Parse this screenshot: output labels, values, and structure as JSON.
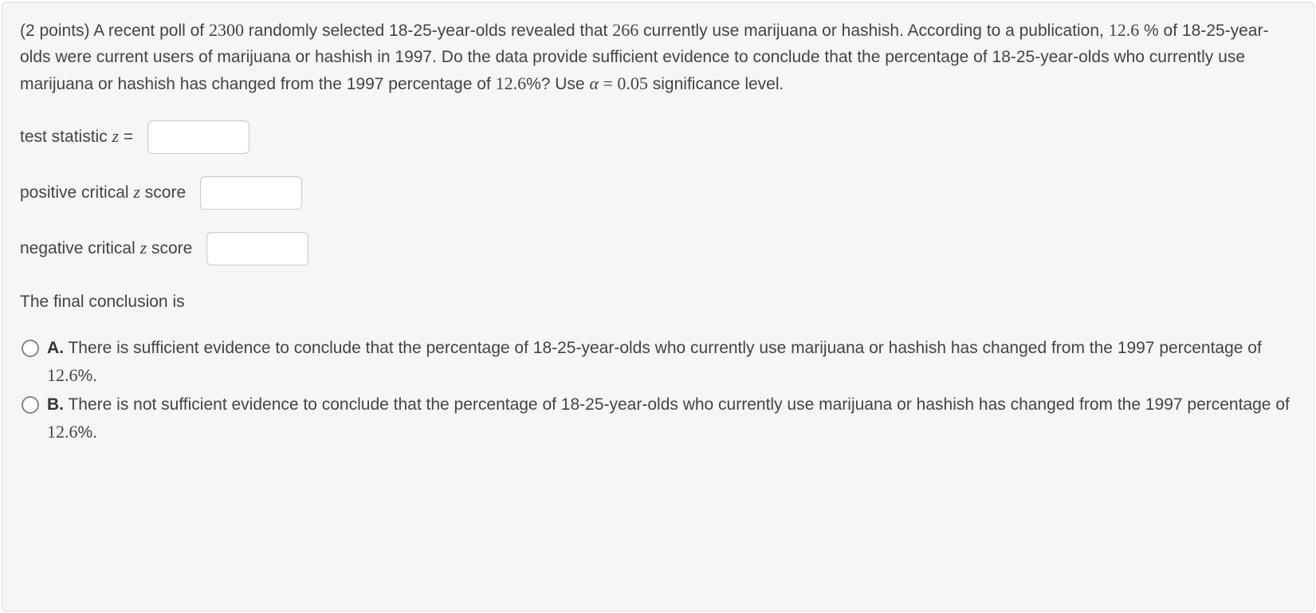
{
  "panel": {
    "background_color": "#f6f6f6",
    "border_color": "#dddddd",
    "text_color": "#444444"
  },
  "question": {
    "points_prefix": "(2 points) A recent poll of ",
    "n_sample": "2300",
    "seg1": " randomly selected 18-25-year-olds revealed that ",
    "n_users": "266",
    "seg2": " currently use marijuana or hashish. According to a publication, ",
    "pct_1997": "12.6",
    "seg3": " % of 18-25-year-olds were current users of marijuana or hashish in 1997. Do the data provide sufficient evidence to conclude that the percentage of 18-25-year-olds who currently use marijuana or hashish has changed from the 1997 percentage of ",
    "pct_1997_b": "12.6",
    "seg4": "%? Use ",
    "alpha_sym": "α",
    "eq": " = ",
    "alpha_val": "0.05",
    "seg5": " significance level."
  },
  "inputs": {
    "test_stat": {
      "label_pre": "test statistic ",
      "z": "z",
      "label_post": " =",
      "value": ""
    },
    "pos_crit": {
      "label_pre": "positive critical ",
      "z": "z",
      "label_post": " score",
      "value": ""
    },
    "neg_crit": {
      "label_pre": "negative critical ",
      "z": "z",
      "label_post": " score",
      "value": ""
    }
  },
  "conclusion": {
    "label": "The final conclusion is"
  },
  "options": {
    "a": {
      "key": "A.",
      "pre": " There is sufficient evidence to conclude that the percentage of 18-25-year-olds who currently use marijuana or hashish has changed from the 1997 percentage of ",
      "pct": "12.6",
      "post": "%."
    },
    "b": {
      "key": "B.",
      "pre": " There is not sufficient evidence to conclude that the percentage of 18-25-year-olds who currently use marijuana or hashish has changed from the 1997 percentage of ",
      "pct": "12.6",
      "post": "%."
    }
  }
}
